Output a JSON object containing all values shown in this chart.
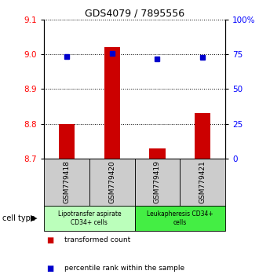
{
  "title": "GDS4079 / 7895556",
  "samples": [
    "GSM779418",
    "GSM779420",
    "GSM779419",
    "GSM779421"
  ],
  "transformed_counts": [
    8.8,
    9.02,
    8.73,
    8.83
  ],
  "percentile_ranks": [
    73.5,
    75.5,
    71.5,
    73.0
  ],
  "ylim_left": [
    8.7,
    9.1
  ],
  "ylim_right": [
    0,
    100
  ],
  "yticks_left": [
    8.7,
    8.8,
    8.9,
    9.0,
    9.1
  ],
  "yticks_right": [
    0,
    25,
    50,
    75,
    100
  ],
  "ytick_labels_right": [
    "0",
    "25",
    "50",
    "75",
    "100%"
  ],
  "bar_color": "#cc0000",
  "dot_color": "#0000cc",
  "groups": [
    {
      "label": "Lipotransfer aspirate\nCD34+ cells",
      "color": "#bbffbb",
      "indices": [
        0,
        1
      ]
    },
    {
      "label": "Leukapheresis CD34+\ncells",
      "color": "#44ee44",
      "indices": [
        2,
        3
      ]
    }
  ],
  "cell_type_label": "cell type",
  "legend_bar_label": "transformed count",
  "legend_dot_label": "percentile rank within the sample",
  "sample_box_color": "#cccccc",
  "baseline": 8.7
}
